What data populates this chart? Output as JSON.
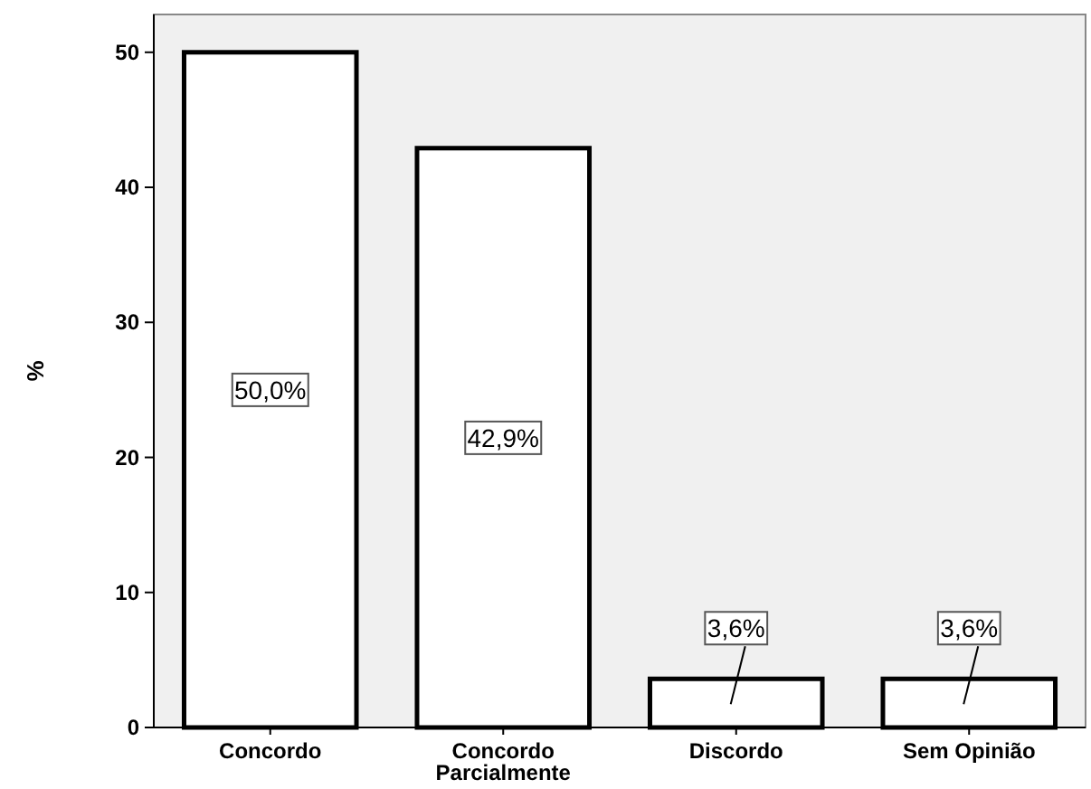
{
  "chart_data": {
    "type": "bar",
    "ylabel": "%",
    "categories": [
      "Concordo",
      "Concordo Parcialmente",
      "Discordo",
      "Sem Opinião"
    ],
    "values": [
      50.0,
      42.9,
      3.6,
      3.6
    ],
    "value_labels": [
      "50,0%",
      "42,9%",
      "3,6%",
      "3,6%"
    ],
    "color": "#ffffff",
    "ylim": [
      0,
      52.8
    ],
    "yticks": [
      0,
      10,
      20,
      30,
      40,
      50
    ],
    "grid": false
  }
}
